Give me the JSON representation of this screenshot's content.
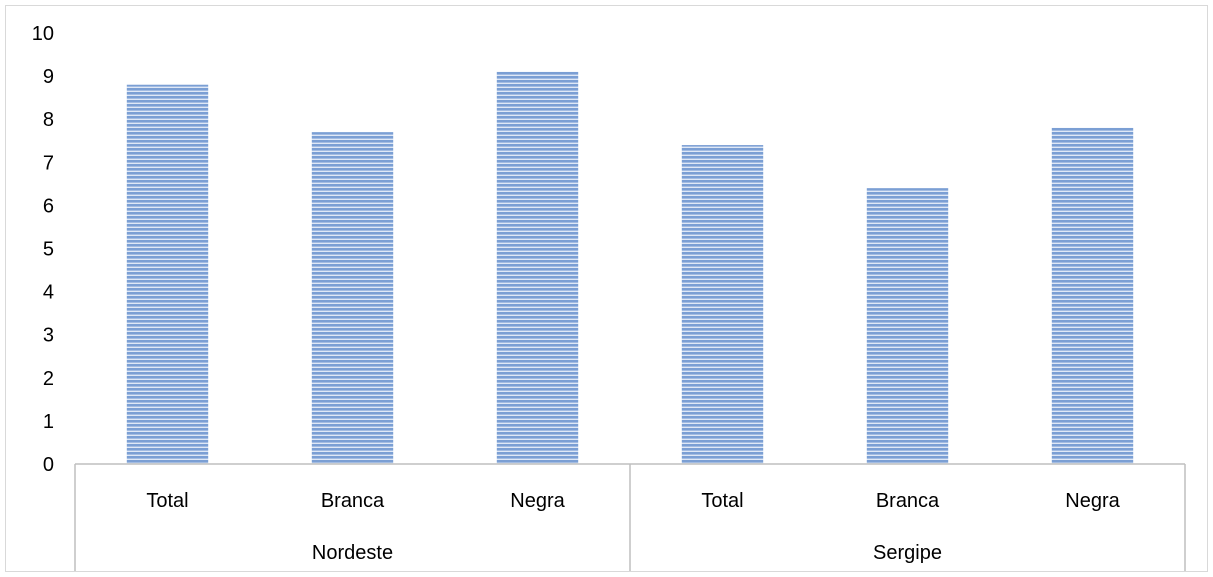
{
  "chart_data": {
    "type": "bar",
    "groups": [
      {
        "name": "Nordeste",
        "categories": [
          "Total",
          "Branca",
          "Negra"
        ],
        "values": [
          8.8,
          7.7,
          9.1
        ]
      },
      {
        "name": "Sergipe",
        "categories": [
          "Total",
          "Branca",
          "Negra"
        ],
        "values": [
          7.4,
          6.4,
          7.8
        ]
      }
    ],
    "ylim": [
      0,
      10
    ],
    "yticks": [
      "0",
      "1",
      "2",
      "3",
      "4",
      "5",
      "6",
      "7",
      "8",
      "9",
      "10"
    ],
    "title": "",
    "xlabel": "",
    "ylabel": "",
    "grid": false,
    "legend": "none",
    "colors": {
      "bar": "#7b9fd4",
      "bar_stripe": "#ffffff",
      "axis": "#bfbfbf"
    }
  }
}
